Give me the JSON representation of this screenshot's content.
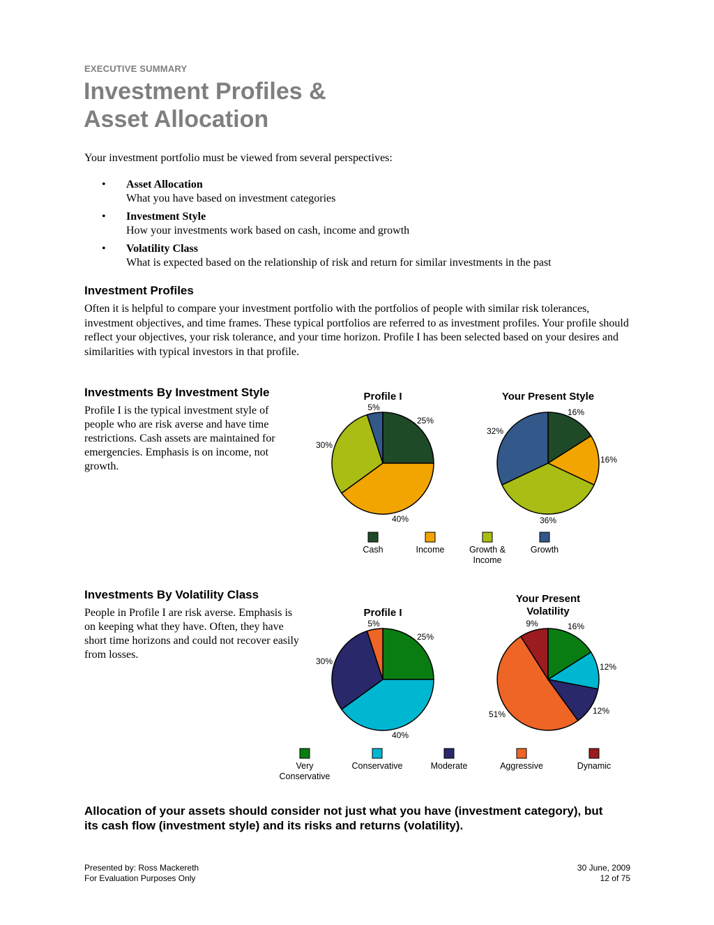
{
  "header": {
    "section_label": "EXECUTIVE SUMMARY",
    "title_line1": "Investment Profiles &",
    "title_line2": "Asset Allocation"
  },
  "intro": "Your investment portfolio must be viewed from several perspectives:",
  "perspectives": [
    {
      "title": "Asset Allocation",
      "desc": "What you have based on investment categories"
    },
    {
      "title": "Investment Style",
      "desc": "How your investments work based on cash, income and growth"
    },
    {
      "title": "Volatility Class",
      "desc": "What is expected based on the relationship of risk and return for similar investments in the past"
    }
  ],
  "profiles": {
    "heading": "Investment Profiles",
    "text": "Often it is helpful to compare your investment portfolio with the portfolios of people with similar risk tolerances, investment objectives, and time frames. These typical portfolios are referred to as investment profiles. Your profile should reflect your objectives, your risk tolerance, and your time horizon. Profile I has been selected based on your desires and similarities with typical investors in that profile."
  },
  "style_section": {
    "heading": "Investments By Investment Style",
    "text": "Profile I is the typical investment style of people who are risk averse and have time restrictions. Cash assets are maintained for emergencies. Emphasis is on income, not growth."
  },
  "volatility_section": {
    "heading": "Investments By Volatility Class",
    "text": "People in Profile I are risk averse. Emphasis is on keeping what they have. Often, they have short time horizons and could not recover easily from losses."
  },
  "closing": "Allocation of your assets should consider not just what you have (investment category), but its cash flow (investment style) and its risks and returns (volatility).",
  "footer": {
    "presented_by": "Presented by: Ross Mackereth",
    "evaluation": "For Evaluation Purposes Only",
    "date": "30 June, 2009",
    "page": "12 of 75"
  },
  "chart_data": [
    {
      "type": "pie",
      "title": "Profile I",
      "categories": [
        "Cash",
        "Income",
        "Growth & Income",
        "Growth"
      ],
      "values": [
        25,
        40,
        30,
        5
      ],
      "labels": [
        "25%",
        "40%",
        "30%",
        "5%"
      ],
      "colors": [
        "#1f4a28",
        "#f2a500",
        "#a9bd14",
        "#33588a"
      ]
    },
    {
      "type": "pie",
      "title": "Your Present Style",
      "categories": [
        "Cash",
        "Income",
        "Growth & Income",
        "Growth"
      ],
      "values": [
        16,
        16,
        36,
        32
      ],
      "labels": [
        "16%",
        "16%",
        "36%",
        "32%"
      ],
      "colors": [
        "#1f4a28",
        "#f2a500",
        "#a9bd14",
        "#33588a"
      ]
    },
    {
      "type": "pie",
      "title": "Profile I",
      "categories": [
        "Very Conservative",
        "Conservative",
        "Moderate",
        "Aggressive"
      ],
      "values": [
        25,
        40,
        30,
        5
      ],
      "labels": [
        "25%",
        "40%",
        "30%",
        "5%"
      ],
      "colors": [
        "#0a7d12",
        "#00b7d2",
        "#29286b",
        "#ee6525"
      ]
    },
    {
      "type": "pie",
      "title": "Your Present Volatility",
      "categories": [
        "Very Conservative",
        "Conservative",
        "Moderate",
        "Aggressive",
        "Dynamic"
      ],
      "values": [
        16,
        12,
        12,
        51,
        9
      ],
      "labels": [
        "16%",
        "12%",
        "12%",
        "51%",
        "9%"
      ],
      "colors": [
        "#0a7d12",
        "#00b7d2",
        "#29286b",
        "#ee6525",
        "#9b1b1f"
      ]
    }
  ],
  "legends": {
    "style": [
      {
        "label": "Cash",
        "color": "#1f4a28"
      },
      {
        "label": "Income",
        "color": "#f2a500"
      },
      {
        "label": "Growth &",
        "label2": "Income",
        "color": "#a9bd14"
      },
      {
        "label": "Growth",
        "color": "#33588a"
      }
    ],
    "volatility": [
      {
        "label": "Very",
        "label2": "Conservative",
        "color": "#0a7d12"
      },
      {
        "label": "Conservative",
        "color": "#00b7d2"
      },
      {
        "label": "Moderate",
        "color": "#29286b"
      },
      {
        "label": "Aggressive",
        "color": "#ee6525"
      },
      {
        "label": "Dynamic",
        "color": "#9b1b1f"
      }
    ]
  }
}
